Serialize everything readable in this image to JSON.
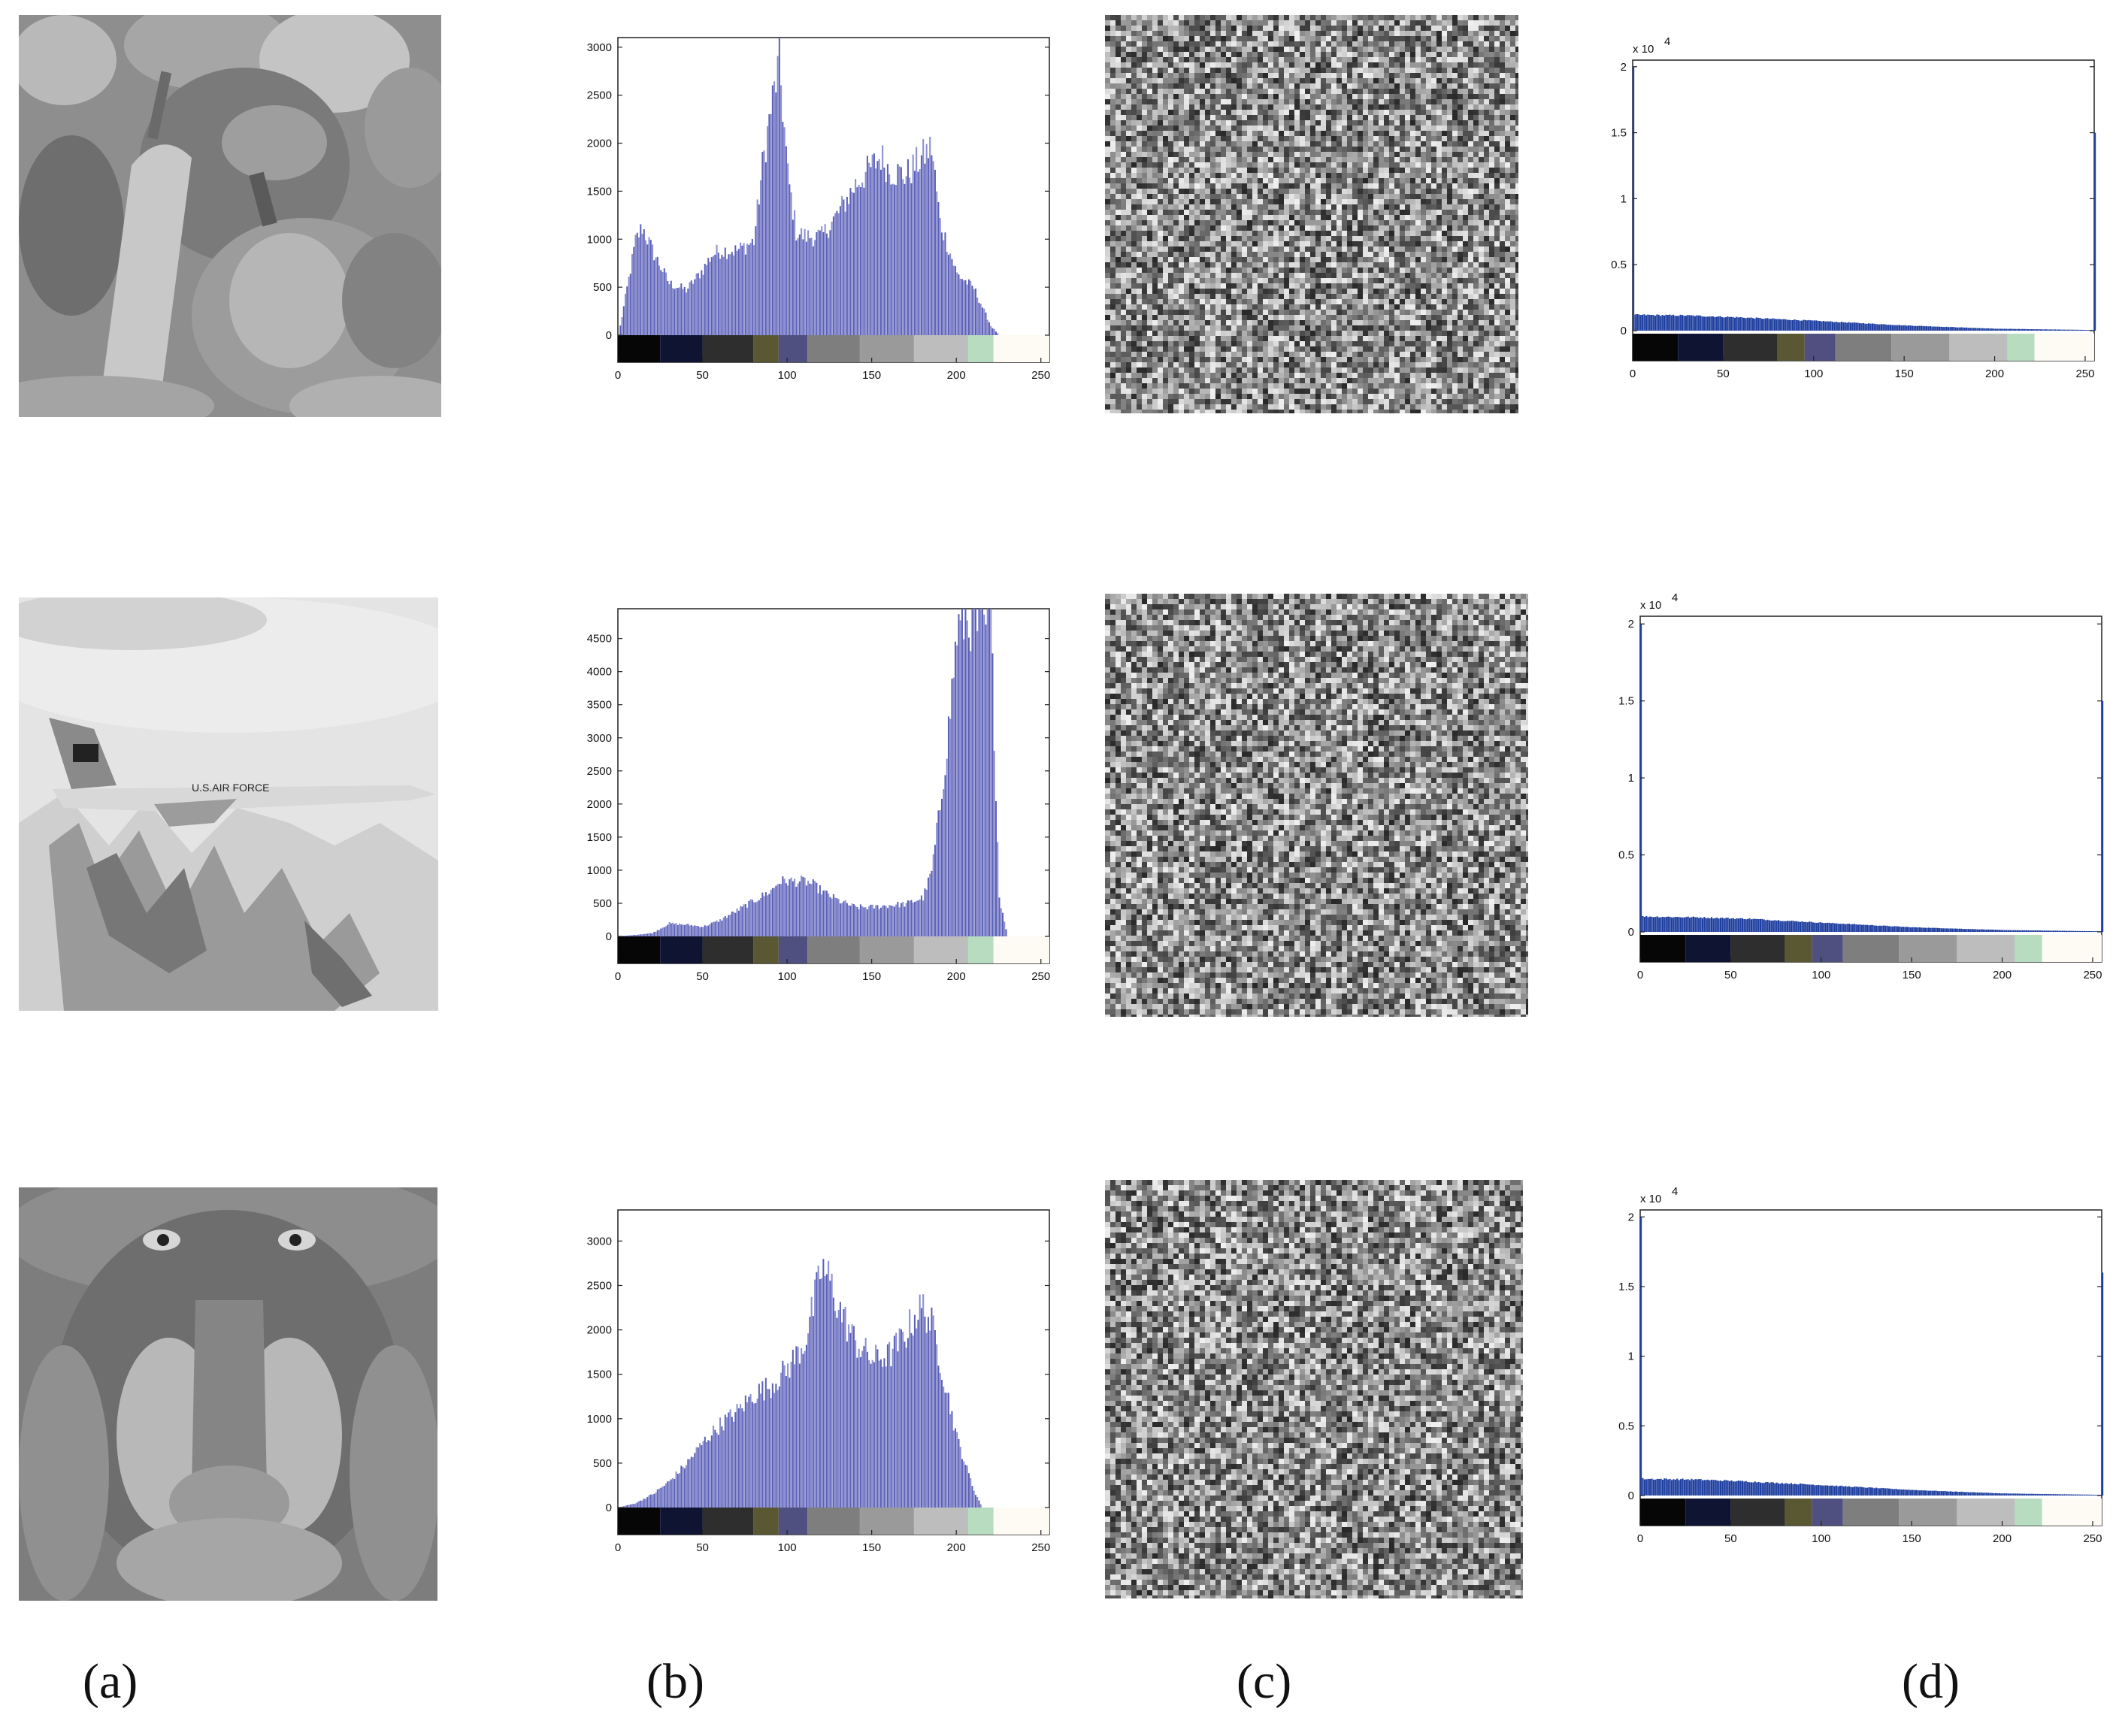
{
  "panel_labels": [
    "(a)",
    "(b)",
    "(c)",
    "(d)"
  ],
  "colors": {
    "bar": "#5b5fb5",
    "bar_alt": "#8a8ed0",
    "bar_dark": "#1f3fa0",
    "axis": "#222222",
    "colorbar": [
      "#060606",
      "#0f1433",
      "#2e2e2e",
      "#5a5833",
      "#4f4f80",
      "#7e7e7e",
      "#9a9a9a",
      "#bdbdbd",
      "#b8dcc0",
      "#fdfbf3"
    ]
  },
  "rows": [
    {
      "image_subject": "peppers",
      "hist_ticks_y": [
        "0",
        "500",
        "1000",
        "1500",
        "2000",
        "2500",
        "3000"
      ],
      "hist_ticks_x": [
        "0",
        "50",
        "100",
        "150",
        "200",
        "250"
      ],
      "enc_ticks_y": [
        "0",
        "0.5",
        "1",
        "1.5",
        "2"
      ],
      "enc_ticks_x": [
        "0",
        "50",
        "100",
        "150",
        "200",
        "250"
      ],
      "enc_exponent_base": "x 10",
      "enc_exponent_power": "4"
    },
    {
      "image_subject": "airplane-f16",
      "hist_ticks_y": [
        "0",
        "500",
        "1000",
        "1500",
        "2000",
        "2500",
        "3000",
        "3500",
        "4000",
        "4500"
      ],
      "hist_ticks_x": [
        "0",
        "50",
        "100",
        "150",
        "200",
        "250"
      ],
      "enc_ticks_y": [
        "0",
        "0.5",
        "1",
        "1.5",
        "2"
      ],
      "enc_ticks_x": [
        "0",
        "50",
        "100",
        "150",
        "200",
        "250"
      ],
      "enc_exponent_base": "x 10",
      "enc_exponent_power": "4"
    },
    {
      "image_subject": "baboon",
      "hist_ticks_y": [
        "0",
        "500",
        "1000",
        "1500",
        "2000",
        "2500",
        "3000"
      ],
      "hist_ticks_x": [
        "0",
        "50",
        "100",
        "150",
        "200",
        "250"
      ],
      "enc_ticks_y": [
        "0",
        "0.5",
        "1",
        "1.5",
        "2"
      ],
      "enc_ticks_x": [
        "0",
        "50",
        "100",
        "150",
        "200",
        "250"
      ],
      "enc_exponent_base": "x 10",
      "enc_exponent_power": "4"
    }
  ],
  "chart_data": [
    {
      "id": "hist-peppers",
      "type": "bar",
      "x_anchor": [
        0,
        10,
        14,
        20,
        30,
        40,
        50,
        55,
        60,
        70,
        80,
        85,
        90,
        95,
        100,
        105,
        110,
        120,
        130,
        140,
        150,
        155,
        160,
        170,
        175,
        180,
        185,
        190,
        200,
        210,
        220,
        225
      ],
      "y_anchor": [
        0,
        1000,
        1150,
        900,
        550,
        480,
        700,
        850,
        900,
        900,
        1000,
        1800,
        2400,
        2900,
        1700,
        1100,
        1050,
        1050,
        1300,
        1600,
        1800,
        1900,
        1750,
        1700,
        1800,
        1900,
        2000,
        1200,
        650,
        500,
        100,
        0
      ],
      "xlim": [
        0,
        255
      ],
      "ylim": [
        0,
        3100
      ]
    },
    {
      "id": "enc-peppers",
      "type": "bar",
      "x_anchor": [
        0,
        1,
        30,
        60,
        100,
        150,
        200,
        254,
        255
      ],
      "y_anchor": [
        20000,
        1200,
        1150,
        1000,
        750,
        400,
        150,
        50,
        15000
      ],
      "xlim": [
        0,
        255
      ],
      "ylim": [
        -1500,
        20500
      ]
    },
    {
      "id": "hist-airplane",
      "type": "bar",
      "x_anchor": [
        0,
        20,
        30,
        40,
        50,
        60,
        70,
        80,
        90,
        95,
        100,
        110,
        115,
        120,
        130,
        140,
        150,
        160,
        170,
        180,
        185,
        190,
        195,
        200,
        205,
        210,
        215,
        220,
        225,
        230
      ],
      "y_anchor": [
        0,
        50,
        200,
        180,
        150,
        250,
        400,
        550,
        700,
        850,
        850,
        850,
        800,
        700,
        550,
        450,
        450,
        480,
        500,
        600,
        1000,
        2000,
        3200,
        4700,
        4900,
        4850,
        4700,
        4900,
        600,
        0
      ],
      "xlim": [
        0,
        255
      ],
      "ylim": [
        0,
        4950
      ]
    },
    {
      "id": "enc-airplane",
      "type": "bar",
      "x_anchor": [
        0,
        1,
        30,
        60,
        100,
        150,
        200,
        254,
        255
      ],
      "y_anchor": [
        20000,
        1000,
        950,
        850,
        600,
        300,
        120,
        40,
        15000
      ],
      "xlim": [
        0,
        255
      ],
      "ylim": [
        -1500,
        20500
      ]
    },
    {
      "id": "hist-baboon",
      "type": "bar",
      "x_anchor": [
        0,
        10,
        20,
        30,
        40,
        50,
        60,
        70,
        80,
        90,
        100,
        110,
        115,
        120,
        125,
        130,
        140,
        150,
        160,
        170,
        175,
        180,
        185,
        190,
        200,
        210,
        215
      ],
      "y_anchor": [
        0,
        50,
        150,
        300,
        500,
        750,
        950,
        1100,
        1300,
        1400,
        1600,
        1900,
        2300,
        2750,
        2600,
        2300,
        1900,
        1700,
        1750,
        2000,
        2200,
        2300,
        2100,
        1700,
        800,
        200,
        0
      ],
      "xlim": [
        0,
        255
      ],
      "ylim": [
        0,
        3350
      ]
    },
    {
      "id": "enc-baboon",
      "type": "bar",
      "x_anchor": [
        0,
        1,
        30,
        60,
        100,
        150,
        200,
        254,
        255
      ],
      "y_anchor": [
        20000,
        1200,
        1150,
        1000,
        750,
        400,
        150,
        50,
        16000
      ],
      "xlim": [
        0,
        255
      ],
      "ylim": [
        -1500,
        20500
      ]
    }
  ]
}
